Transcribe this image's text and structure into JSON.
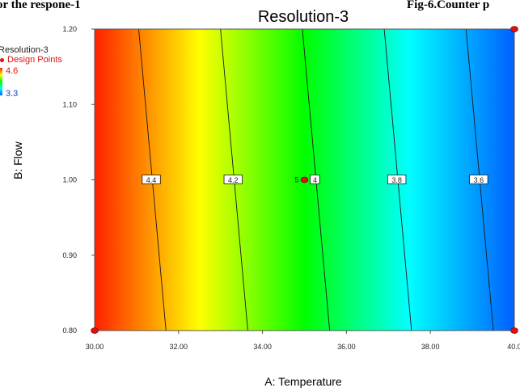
{
  "captions": {
    "left": "or the respone-1",
    "right": "Fig-6.Counter p"
  },
  "chart_data": {
    "type": "contour",
    "title": "Resolution-3",
    "xlabel": "A: Temperature",
    "ylabel": "B: Flow",
    "xlim": [
      30,
      40
    ],
    "ylim": [
      0.8,
      1.2
    ],
    "x_ticks": [
      "30.00",
      "32.00",
      "34.00",
      "36.00",
      "38.00",
      "40.0"
    ],
    "y_ticks": [
      "0.80",
      "0.90",
      "1.00",
      "1.10",
      "1.20"
    ],
    "legend": {
      "title": "Resolution-3",
      "design_points_label": "Design Points",
      "max": "4.6",
      "min": "3.3"
    },
    "contours": [
      {
        "level": 4.4,
        "label": "4.4",
        "x_top": 31.05,
        "x_bottom": 31.7,
        "label_x": 31.35,
        "label_y": 1.0
      },
      {
        "level": 4.2,
        "label": "4.2",
        "x_top": 33.0,
        "x_bottom": 33.65,
        "label_x": 33.3,
        "label_y": 1.0
      },
      {
        "level": 4.0,
        "label": "4",
        "x_top": 34.95,
        "x_bottom": 35.6,
        "label_x": 35.25,
        "label_y": 1.0
      },
      {
        "level": 3.8,
        "label": "3.8",
        "x_top": 36.9,
        "x_bottom": 37.55,
        "label_x": 37.2,
        "label_y": 1.0
      },
      {
        "level": 3.6,
        "label": "3.6",
        "x_top": 38.85,
        "x_bottom": 39.5,
        "label_x": 39.15,
        "label_y": 1.0
      }
    ],
    "design_points": [
      {
        "x": 35,
        "y": 1.0,
        "label": "5"
      },
      {
        "x": 30,
        "y": 0.8,
        "label": ""
      },
      {
        "x": 40,
        "y": 0.8,
        "label": ""
      },
      {
        "x": 40,
        "y": 1.2,
        "label": ""
      }
    ]
  },
  "colors": {
    "high": "#ff2000",
    "mid_high": "#ffff00",
    "mid": "#00ff00",
    "mid_low": "#00ffff",
    "low": "#0060ff",
    "design_point": "#dd1111"
  }
}
